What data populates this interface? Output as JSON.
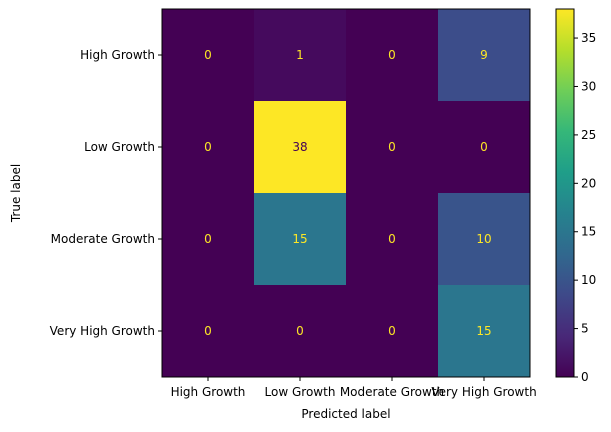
{
  "chart_data": {
    "type": "heatmap",
    "title": "",
    "xlabel": "Predicted label",
    "ylabel": "True label",
    "x_categories": [
      "High Growth",
      "Low Growth",
      "Moderate Growth",
      "Very High Growth"
    ],
    "y_categories": [
      "High Growth",
      "Low Growth",
      "Moderate Growth",
      "Very High Growth"
    ],
    "matrix": [
      [
        0,
        1,
        0,
        9
      ],
      [
        0,
        38,
        0,
        0
      ],
      [
        0,
        15,
        0,
        10
      ],
      [
        0,
        0,
        0,
        15
      ]
    ],
    "colormap": "viridis",
    "value_range": [
      0,
      38
    ],
    "colorbar_ticks": [
      0,
      5,
      10,
      15,
      20,
      25,
      30,
      35
    ],
    "grid": false,
    "label_colors": {
      "low": "#fde725",
      "high": "#440154"
    }
  }
}
